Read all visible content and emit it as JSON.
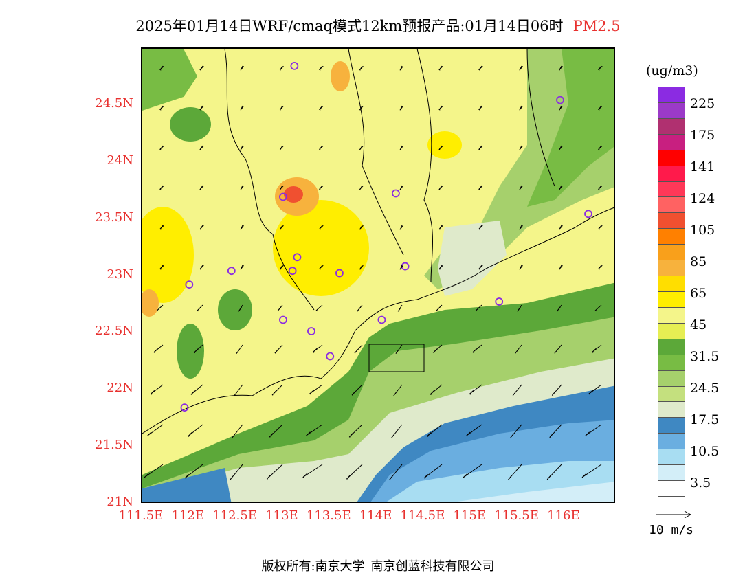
{
  "title": {
    "main": "2025年01月14日WRF/cmaq模式12km预报产品:01月14日06时",
    "pollutant": "PM2.5"
  },
  "colors": {
    "accent": "#e8312f",
    "sea_dark": "#3f88c2",
    "sea_light": "#a8ddf2",
    "green_dark": "#5ca839",
    "green_light": "#c7e06f",
    "yellow": "#f7f36a",
    "yellow_deep": "#ffe63a",
    "orange": "#f5a431"
  },
  "map": {
    "lat_labels": [
      "24.5N",
      "24N",
      "23.5N",
      "23N",
      "22.5N",
      "22N",
      "21.5N",
      "21N"
    ],
    "lon_labels": [
      "111.5E",
      "112E",
      "112.5E",
      "113E",
      "113.5E",
      "114E",
      "114.5E",
      "115E",
      "115.5E",
      "116E"
    ],
    "extent": {
      "lon": [
        111.5,
        116.55
      ],
      "lat": [
        21.0,
        25.0
      ]
    },
    "monitoring_sites": [
      [
        113.12,
        24.85
      ],
      [
        115.95,
        24.55
      ],
      [
        113.0,
        23.7
      ],
      [
        114.2,
        23.73
      ],
      [
        116.25,
        23.55
      ],
      [
        112.45,
        23.05
      ],
      [
        113.1,
        23.05
      ],
      [
        113.15,
        23.17
      ],
      [
        113.6,
        23.03
      ],
      [
        114.3,
        23.09
      ],
      [
        112.0,
        22.93
      ],
      [
        113.0,
        22.62
      ],
      [
        113.3,
        22.52
      ],
      [
        114.05,
        22.62
      ],
      [
        115.3,
        22.78
      ],
      [
        113.5,
        22.3
      ],
      [
        111.95,
        21.85
      ]
    ]
  },
  "legend": {
    "unit": "(ug/m3)",
    "labels": [
      "225",
      "175",
      "141",
      "124",
      "105",
      "85",
      "65",
      "45",
      "31.5",
      "24.5",
      "17.5",
      "10.5",
      "3.5"
    ],
    "colors": [
      "#8b2be2",
      "#9b3ac8",
      "#b03070",
      "#c81f80",
      "#ff0000",
      "#ff1a4b",
      "#ff3858",
      "#ff6262",
      "#f05030",
      "#ff8000",
      "#f9a01b",
      "#f7b23d",
      "#ffde00",
      "#ffee00",
      "#f4f58a",
      "#e6ee53",
      "#5ca839",
      "#78bc44",
      "#a6d06c",
      "#c4e07e",
      "#dfeacb",
      "#3f88c2",
      "#6aaee0",
      "#a8ddf2",
      "#d3eef8",
      "#ffffff"
    ]
  },
  "wind_reference": {
    "label": "10 m/s"
  },
  "footer": {
    "left": "版权所有:南京大学",
    "right": "南京创蓝科技有限公司"
  }
}
